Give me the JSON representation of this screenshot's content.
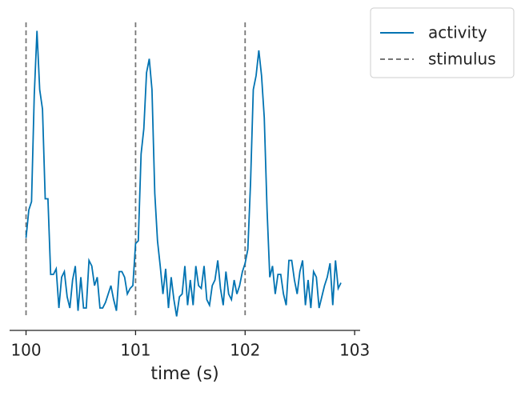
{
  "chart_data": {
    "type": "line",
    "xlabel": "time (s)",
    "x": [
      100,
      100.025,
      100.05,
      100.075,
      100.1,
      100.125,
      100.15,
      100.175,
      100.2,
      100.225,
      100.25,
      100.275,
      100.3,
      100.325,
      100.35,
      100.375,
      100.4,
      100.425,
      100.45,
      100.475,
      100.5,
      100.525,
      100.55,
      100.575,
      100.6,
      100.625,
      100.65,
      100.675,
      100.7,
      100.725,
      100.75,
      100.775,
      100.8,
      100.825,
      100.85,
      100.875,
      100.9,
      100.925,
      100.95,
      100.975,
      101,
      101.025,
      101.05,
      101.075,
      101.1,
      101.125,
      101.15,
      101.175,
      101.2,
      101.225,
      101.25,
      101.275,
      101.3,
      101.325,
      101.35,
      101.375,
      101.4,
      101.425,
      101.45,
      101.475,
      101.5,
      101.525,
      101.55,
      101.575,
      101.6,
      101.625,
      101.65,
      101.675,
      101.7,
      101.725,
      101.75,
      101.775,
      101.8,
      101.825,
      101.85,
      101.875,
      101.9,
      101.925,
      101.95,
      101.975,
      102,
      102.025,
      102.05,
      102.075,
      102.1,
      102.125,
      102.15,
      102.175,
      102.2,
      102.225,
      102.25,
      102.275,
      102.3,
      102.325,
      102.35,
      102.375,
      102.4,
      102.425,
      102.45,
      102.475,
      102.5,
      102.525,
      102.55,
      102.575,
      102.6,
      102.625,
      102.65,
      102.675,
      102.7,
      102.725,
      102.75,
      102.775,
      102.8,
      102.825,
      102.85,
      102.875
    ],
    "series": [
      {
        "name": "activity",
        "color": "#0173b2",
        "values": [
          0.26,
          0.36,
          0.39,
          0.77,
          1.0,
          0.79,
          0.72,
          0.4,
          0.4,
          0.13,
          0.13,
          0.15,
          0.01,
          0.12,
          0.14,
          0.05,
          0.01,
          0.11,
          0.16,
          0.0,
          0.12,
          0.01,
          0.01,
          0.18,
          0.16,
          0.09,
          0.12,
          0.01,
          0.01,
          0.03,
          0.06,
          0.09,
          0.04,
          0.0,
          0.14,
          0.14,
          0.12,
          0.06,
          0.08,
          0.09,
          0.24,
          0.25,
          0.56,
          0.65,
          0.85,
          0.9,
          0.79,
          0.42,
          0.25,
          0.16,
          0.06,
          0.15,
          0.01,
          0.12,
          0.04,
          -0.02,
          0.05,
          0.06,
          0.16,
          0.02,
          0.11,
          0.02,
          0.16,
          0.09,
          0.08,
          0.16,
          0.04,
          0.02,
          0.09,
          0.11,
          0.18,
          0.08,
          0.02,
          0.14,
          0.06,
          0.04,
          0.11,
          0.06,
          0.09,
          0.14,
          0.17,
          0.22,
          0.46,
          0.79,
          0.84,
          0.93,
          0.84,
          0.69,
          0.36,
          0.12,
          0.16,
          0.06,
          0.13,
          0.13,
          0.06,
          0.02,
          0.18,
          0.18,
          0.11,
          0.06,
          0.14,
          0.18,
          0.02,
          0.11,
          0.01,
          0.14,
          0.12,
          0.01,
          0.05,
          0.09,
          0.12,
          0.17,
          0.02,
          0.18,
          0.08,
          0.1
        ]
      }
    ],
    "stimulus": {
      "name": "stimulus",
      "color": "#777777",
      "x": [
        100,
        101,
        102
      ]
    },
    "xlim": [
      99.85,
      103.05
    ],
    "xticks": [
      100,
      101,
      102,
      103
    ],
    "ylim": [
      -0.07,
      1.03
    ],
    "legend": "outside upper right"
  }
}
